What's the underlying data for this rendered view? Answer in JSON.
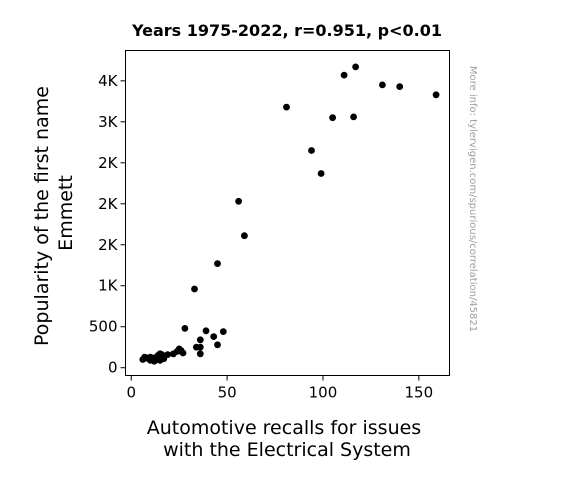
{
  "chart_data": {
    "type": "scatter",
    "title": "Years 1975-2022, r=0.951, p<0.01",
    "xlabel_lines": [
      "Automotive recalls for issues",
      "with the Electrical System"
    ],
    "ylabel_lines": [
      "Popularity of the first name",
      "Emmett"
    ],
    "watermark": "More info: tylervigen.com/spurious/correlation/45821",
    "xlim": [
      -3,
      166
    ],
    "ylim": [
      -95,
      3870
    ],
    "x_ticks": [
      {
        "value": 0,
        "label": "0"
      },
      {
        "value": 50,
        "label": "50"
      },
      {
        "value": 100,
        "label": "100"
      },
      {
        "value": 150,
        "label": "150"
      }
    ],
    "y_ticks": [
      {
        "value": 0,
        "label": "0"
      },
      {
        "value": 500,
        "label": "500"
      },
      {
        "value": 1000,
        "label": "1K"
      },
      {
        "value": 1500,
        "label": "2K"
      },
      {
        "value": 2000,
        "label": "2K"
      },
      {
        "value": 2500,
        "label": "2K"
      },
      {
        "value": 3000,
        "label": "3K"
      },
      {
        "value": 3500,
        "label": "4K"
      }
    ],
    "grid": false,
    "marker_color": "#000000",
    "points": [
      {
        "x": 6,
        "y": 100
      },
      {
        "x": 7,
        "y": 130
      },
      {
        "x": 8,
        "y": 120
      },
      {
        "x": 9,
        "y": 110
      },
      {
        "x": 10,
        "y": 90
      },
      {
        "x": 10,
        "y": 130
      },
      {
        "x": 11,
        "y": 100
      },
      {
        "x": 12,
        "y": 80
      },
      {
        "x": 12,
        "y": 120
      },
      {
        "x": 13,
        "y": 110
      },
      {
        "x": 14,
        "y": 150
      },
      {
        "x": 14,
        "y": 100
      },
      {
        "x": 15,
        "y": 170
      },
      {
        "x": 15,
        "y": 90
      },
      {
        "x": 16,
        "y": 130
      },
      {
        "x": 16,
        "y": 160
      },
      {
        "x": 17,
        "y": 110
      },
      {
        "x": 19,
        "y": 160
      },
      {
        "x": 22,
        "y": 170
      },
      {
        "x": 24,
        "y": 200
      },
      {
        "x": 25,
        "y": 230
      },
      {
        "x": 26,
        "y": 210
      },
      {
        "x": 27,
        "y": 180
      },
      {
        "x": 28,
        "y": 480
      },
      {
        "x": 33,
        "y": 960
      },
      {
        "x": 34,
        "y": 250
      },
      {
        "x": 36,
        "y": 340
      },
      {
        "x": 36,
        "y": 250
      },
      {
        "x": 36,
        "y": 170
      },
      {
        "x": 39,
        "y": 450
      },
      {
        "x": 43,
        "y": 380
      },
      {
        "x": 45,
        "y": 280
      },
      {
        "x": 45,
        "y": 1270
      },
      {
        "x": 48,
        "y": 440
      },
      {
        "x": 56,
        "y": 2030
      },
      {
        "x": 59,
        "y": 1610
      },
      {
        "x": 81,
        "y": 3180
      },
      {
        "x": 94,
        "y": 2650
      },
      {
        "x": 99,
        "y": 2370
      },
      {
        "x": 105,
        "y": 3050
      },
      {
        "x": 111,
        "y": 3570
      },
      {
        "x": 116,
        "y": 3060
      },
      {
        "x": 117,
        "y": 3670
      },
      {
        "x": 131,
        "y": 3450
      },
      {
        "x": 140,
        "y": 3430
      },
      {
        "x": 159,
        "y": 3330
      }
    ]
  }
}
